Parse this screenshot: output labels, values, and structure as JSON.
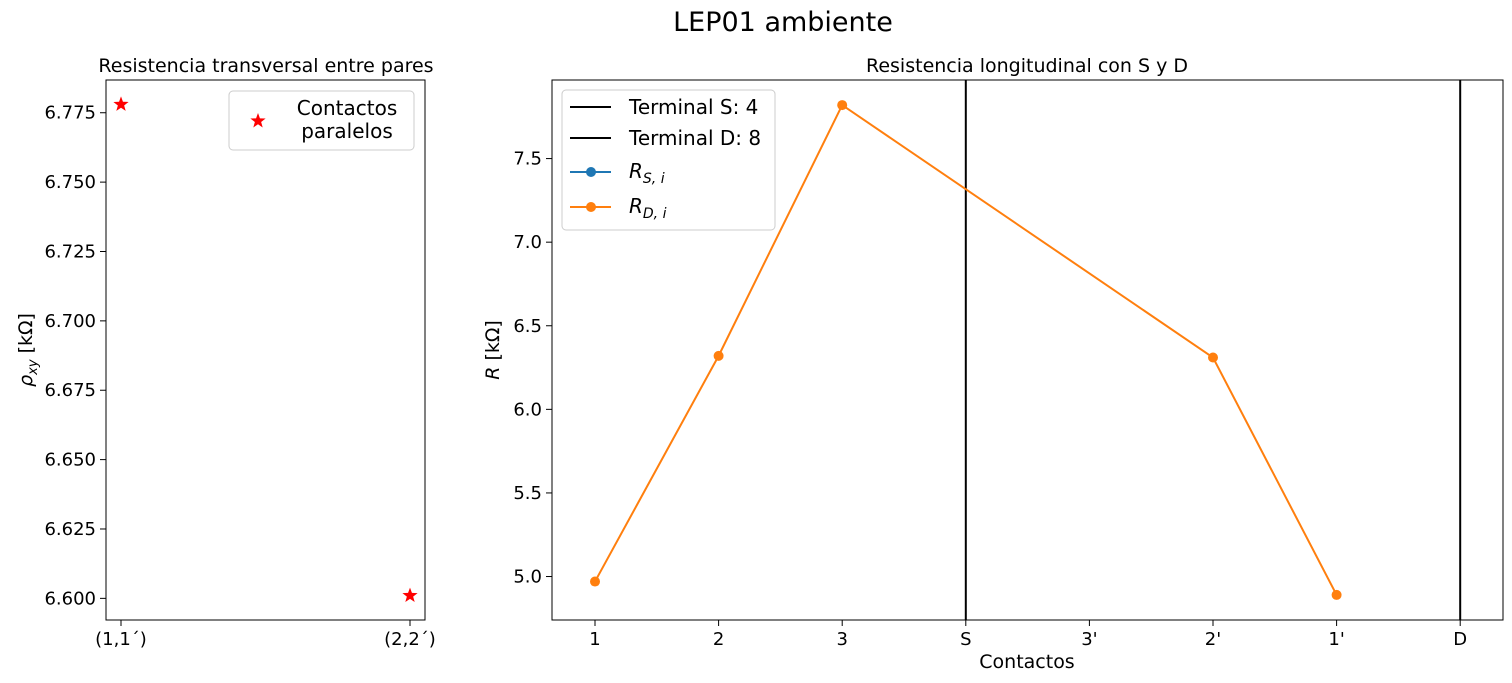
{
  "figure": {
    "suptitle": "LEP01 ambiente"
  },
  "chart_data": [
    {
      "type": "scatter",
      "title": "Resistencia transversal entre pares",
      "xlabel": "",
      "ylabel": "ρxy [kΩ]",
      "ylabel_main": "ρ",
      "ylabel_sub": "xy",
      "ylabel_unit": " [kΩ]",
      "categories": [
        "(1,1´)",
        "(2,2´)"
      ],
      "yticks": [
        "6.600",
        "6.625",
        "6.650",
        "6.675",
        "6.700",
        "6.725",
        "6.750",
        "6.775"
      ],
      "ylim": [
        6.5922,
        6.7868
      ],
      "grid": false,
      "legend_position": "upper right",
      "series": [
        {
          "name": "Contactos\nparalelos",
          "legend_lines": [
            "Contactos",
            "paralelos"
          ],
          "color": "#ff0000",
          "marker": "star",
          "values": [
            6.778,
            6.601
          ]
        }
      ]
    },
    {
      "type": "line",
      "title": "Resistencia longitudinal con S y D",
      "xlabel": "Contactos",
      "ylabel": "R [kΩ]",
      "ylabel_main": "R",
      "ylabel_unit": " [kΩ]",
      "categories": [
        "1",
        "2",
        "3",
        "S",
        "3'",
        "2'",
        "1'",
        "D"
      ],
      "yticks": [
        "5.0",
        "5.5",
        "6.0",
        "6.5",
        "7.0",
        "7.5"
      ],
      "ylim": [
        4.74,
        7.97
      ],
      "grid": false,
      "legend_position": "upper left",
      "vlines": [
        {
          "name": "Terminal S: 4",
          "category": "S",
          "color": "#000000"
        },
        {
          "name": "Terminal D: 8",
          "category": "D",
          "color": "#000000"
        }
      ],
      "series": [
        {
          "name": "R_{S,i}",
          "label_main": "R",
          "label_sub": "S, i",
          "color": "#1f77b4",
          "marker": "circle",
          "points": []
        },
        {
          "name": "R_{D,i}",
          "label_main": "R",
          "label_sub": "D, i",
          "color": "#ff7f0e",
          "marker": "circle",
          "points": [
            {
              "category": "1",
              "value": 4.97
            },
            {
              "category": "2",
              "value": 6.32
            },
            {
              "category": "3",
              "value": 7.82
            },
            {
              "category": "2'",
              "value": 6.31
            },
            {
              "category": "1'",
              "value": 4.89
            }
          ]
        }
      ]
    }
  ]
}
